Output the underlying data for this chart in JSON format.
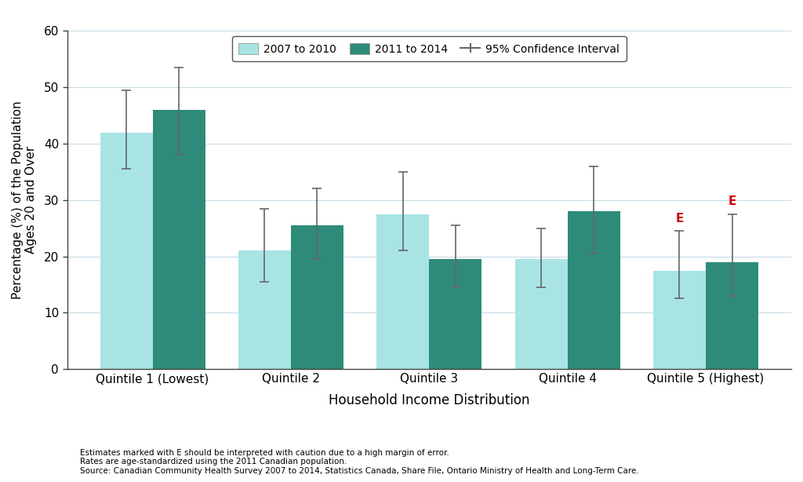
{
  "categories": [
    "Quintile 1 (Lowest)",
    "Quintile 2",
    "Quintile 3",
    "Quintile 4",
    "Quintile 5 (Highest)"
  ],
  "values_2007": [
    42.0,
    21.0,
    27.5,
    19.5,
    17.5
  ],
  "values_2011": [
    46.0,
    25.5,
    19.5,
    28.0,
    19.0
  ],
  "ci_2007_lower": [
    35.5,
    15.5,
    21.0,
    14.5,
    12.5
  ],
  "ci_2007_upper": [
    49.5,
    28.5,
    35.0,
    25.0,
    24.5
  ],
  "ci_2011_lower": [
    38.0,
    19.5,
    14.5,
    20.5,
    13.0
  ],
  "ci_2011_upper": [
    53.5,
    32.0,
    25.5,
    36.0,
    27.5
  ],
  "color_2007": "#a8e4e4",
  "color_2011": "#2e8b7a",
  "bar_width": 0.38,
  "xlabel": "Household Income Distribution",
  "ylabel": "Percentage (%) of the Population\nAges 20 and Over",
  "ylim": [
    0,
    60
  ],
  "yticks": [
    0,
    10,
    20,
    30,
    40,
    50,
    60
  ],
  "legend_label_2007": "2007 to 2010",
  "legend_label_2011": "2011 to 2014",
  "legend_label_ci": "95% Confidence Interval",
  "footnote_line1": "Estimates marked with E should be interpreted with caution due to a high margin of error.",
  "footnote_line2": "Rates are age-standardized using the 2011 Canadian population.",
  "footnote_line3": "Source: Canadian Community Health Survey 2007 to 2014, Statistics Canada, Share File, Ontario Ministry of Health and Long-Term Care.",
  "background_color": "#ffffff",
  "grid_color": "#c8dce8",
  "error_bar_color": "#666666",
  "e_color": "#cc0000",
  "spine_color": "#444444"
}
